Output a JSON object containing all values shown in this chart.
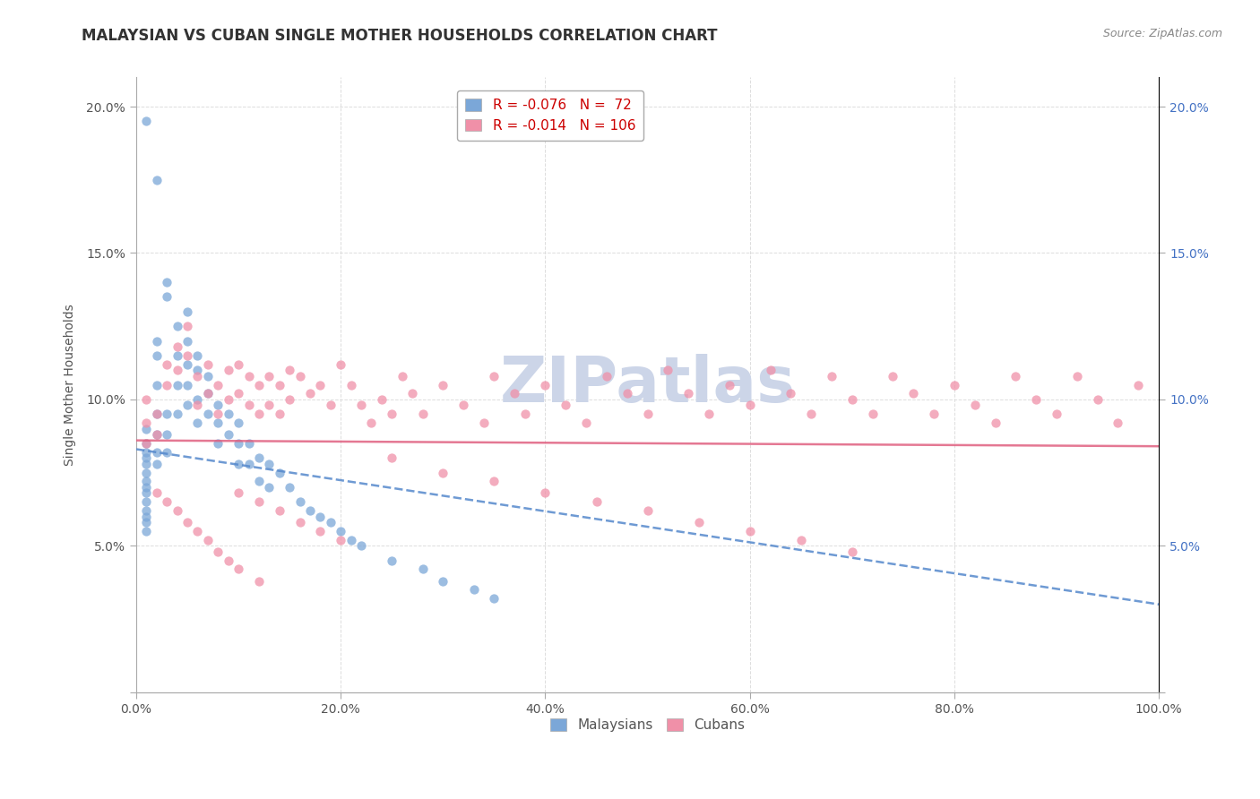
{
  "title": "MALAYSIAN VS CUBAN SINGLE MOTHER HOUSEHOLDS CORRELATION CHART",
  "source": "Source: ZipAtlas.com",
  "ylabel": "Single Mother Households",
  "watermark": "ZIPatlas",
  "xlim": [
    0.0,
    1.0
  ],
  "ylim": [
    0.0,
    0.21
  ],
  "xtick_vals": [
    0.0,
    0.2,
    0.4,
    0.6,
    0.8,
    1.0
  ],
  "xtick_labels": [
    "0.0%",
    "20.0%",
    "40.0%",
    "60.0%",
    "80.0%",
    "100.0%"
  ],
  "ytick_vals": [
    0.0,
    0.05,
    0.1,
    0.15,
    0.2
  ],
  "ytick_labels_left": [
    "",
    "5.0%",
    "10.0%",
    "15.0%",
    "20.0%"
  ],
  "ytick_labels_right": [
    "",
    "5.0%",
    "10.0%",
    "15.0%",
    "20.0%"
  ],
  "grid_color": "#dddddd",
  "malaysian_color": "#7ba7d8",
  "cuban_color": "#f090a8",
  "trendline_malaysian_color": "#5588cc",
  "trendline_cuban_color": "#e06080",
  "R_malaysian": -0.076,
  "R_cuban": -0.014,
  "N_malaysian": 72,
  "N_cuban": 106,
  "mal_trend_x0": 0.0,
  "mal_trend_y0": 0.083,
  "mal_trend_x1": 1.0,
  "mal_trend_y1": 0.03,
  "cub_trend_x0": 0.0,
  "cub_trend_y0": 0.086,
  "cub_trend_x1": 1.0,
  "cub_trend_y1": 0.084,
  "malaysian_x": [
    0.01,
    0.01,
    0.01,
    0.01,
    0.01,
    0.01,
    0.01,
    0.01,
    0.01,
    0.01,
    0.01,
    0.01,
    0.01,
    0.01,
    0.02,
    0.02,
    0.02,
    0.02,
    0.02,
    0.02,
    0.02,
    0.03,
    0.03,
    0.03,
    0.03,
    0.03,
    0.04,
    0.04,
    0.04,
    0.04,
    0.05,
    0.05,
    0.05,
    0.05,
    0.05,
    0.06,
    0.06,
    0.06,
    0.06,
    0.07,
    0.07,
    0.07,
    0.08,
    0.08,
    0.08,
    0.09,
    0.09,
    0.1,
    0.1,
    0.1,
    0.11,
    0.11,
    0.12,
    0.12,
    0.13,
    0.13,
    0.14,
    0.15,
    0.16,
    0.17,
    0.18,
    0.19,
    0.2,
    0.21,
    0.22,
    0.25,
    0.28,
    0.3,
    0.33,
    0.35,
    0.01,
    0.02
  ],
  "malaysian_y": [
    0.09,
    0.085,
    0.082,
    0.08,
    0.078,
    0.075,
    0.072,
    0.07,
    0.068,
    0.065,
    0.062,
    0.06,
    0.058,
    0.055,
    0.12,
    0.115,
    0.105,
    0.095,
    0.088,
    0.082,
    0.078,
    0.14,
    0.135,
    0.095,
    0.088,
    0.082,
    0.125,
    0.115,
    0.105,
    0.095,
    0.13,
    0.12,
    0.112,
    0.105,
    0.098,
    0.115,
    0.11,
    0.1,
    0.092,
    0.108,
    0.102,
    0.095,
    0.098,
    0.092,
    0.085,
    0.095,
    0.088,
    0.092,
    0.085,
    0.078,
    0.085,
    0.078,
    0.08,
    0.072,
    0.078,
    0.07,
    0.075,
    0.07,
    0.065,
    0.062,
    0.06,
    0.058,
    0.055,
    0.052,
    0.05,
    0.045,
    0.042,
    0.038,
    0.035,
    0.032,
    0.195,
    0.175
  ],
  "cuban_x": [
    0.01,
    0.01,
    0.01,
    0.02,
    0.02,
    0.03,
    0.03,
    0.04,
    0.04,
    0.05,
    0.05,
    0.06,
    0.06,
    0.07,
    0.07,
    0.08,
    0.08,
    0.09,
    0.09,
    0.1,
    0.1,
    0.11,
    0.11,
    0.12,
    0.12,
    0.13,
    0.13,
    0.14,
    0.14,
    0.15,
    0.15,
    0.16,
    0.17,
    0.18,
    0.19,
    0.2,
    0.21,
    0.22,
    0.23,
    0.24,
    0.25,
    0.26,
    0.27,
    0.28,
    0.3,
    0.32,
    0.34,
    0.35,
    0.37,
    0.38,
    0.4,
    0.42,
    0.44,
    0.46,
    0.48,
    0.5,
    0.52,
    0.54,
    0.56,
    0.58,
    0.6,
    0.62,
    0.64,
    0.66,
    0.68,
    0.7,
    0.72,
    0.74,
    0.76,
    0.78,
    0.8,
    0.82,
    0.84,
    0.86,
    0.88,
    0.9,
    0.92,
    0.94,
    0.96,
    0.98,
    0.25,
    0.3,
    0.35,
    0.4,
    0.45,
    0.5,
    0.55,
    0.6,
    0.65,
    0.7,
    0.1,
    0.12,
    0.14,
    0.16,
    0.18,
    0.2,
    0.02,
    0.03,
    0.04,
    0.05,
    0.06,
    0.07,
    0.08,
    0.09,
    0.1,
    0.12
  ],
  "cuban_y": [
    0.1,
    0.092,
    0.085,
    0.095,
    0.088,
    0.112,
    0.105,
    0.118,
    0.11,
    0.125,
    0.115,
    0.108,
    0.098,
    0.112,
    0.102,
    0.105,
    0.095,
    0.11,
    0.1,
    0.112,
    0.102,
    0.108,
    0.098,
    0.105,
    0.095,
    0.108,
    0.098,
    0.105,
    0.095,
    0.11,
    0.1,
    0.108,
    0.102,
    0.105,
    0.098,
    0.112,
    0.105,
    0.098,
    0.092,
    0.1,
    0.095,
    0.108,
    0.102,
    0.095,
    0.105,
    0.098,
    0.092,
    0.108,
    0.102,
    0.095,
    0.105,
    0.098,
    0.092,
    0.108,
    0.102,
    0.095,
    0.11,
    0.102,
    0.095,
    0.105,
    0.098,
    0.11,
    0.102,
    0.095,
    0.108,
    0.1,
    0.095,
    0.108,
    0.102,
    0.095,
    0.105,
    0.098,
    0.092,
    0.108,
    0.1,
    0.095,
    0.108,
    0.1,
    0.092,
    0.105,
    0.08,
    0.075,
    0.072,
    0.068,
    0.065,
    0.062,
    0.058,
    0.055,
    0.052,
    0.048,
    0.068,
    0.065,
    0.062,
    0.058,
    0.055,
    0.052,
    0.068,
    0.065,
    0.062,
    0.058,
    0.055,
    0.052,
    0.048,
    0.045,
    0.042,
    0.038
  ],
  "title_fontsize": 12,
  "axis_label_fontsize": 10,
  "tick_fontsize": 10,
  "legend_fontsize": 11,
  "source_fontsize": 9,
  "watermark_fontsize": 52,
  "watermark_color": "#ccd5e8",
  "background_color": "#ffffff"
}
